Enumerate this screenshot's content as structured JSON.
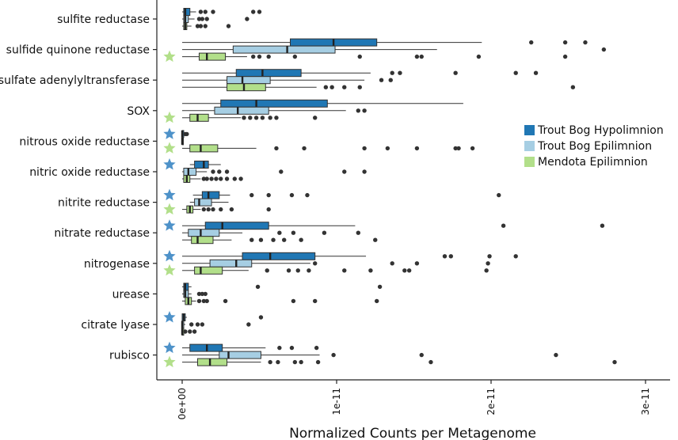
{
  "chart_data": {
    "type": "boxplot",
    "xlabel": "Normalized Counts per Metagenome",
    "ylabel": "",
    "title": "",
    "xlim": [
      -1.6e-12,
      3.1e-11
    ],
    "x_tick_values": [
      0,
      1e-11,
      2e-11,
      3e-11
    ],
    "x_tick_labels": [
      "0e+00",
      "1e-11",
      "2e-11",
      "3e-11"
    ],
    "grid": false,
    "legend_position": "right",
    "categories": [
      "sulfite reductase",
      "sulfide quinone reductase",
      "sulfate adenylyltransferase",
      "SOX",
      "nitrous oxide reductase",
      "nitric oxide reductase",
      "nitrite reductase",
      "nitrate reductase",
      "nitrogenase",
      "urease",
      "citrate lyase",
      "rubisco"
    ],
    "series": [
      {
        "name": "Trout Bog Hypolimnion",
        "color": "#2077b4",
        "boxes": [
          {
            "whisker_low": 0.0,
            "q1": 1e-13,
            "median": 2e-13,
            "q3": 5e-13,
            "whisker_high": 9e-13,
            "outliers": [
              1.2e-12,
              1.5e-12,
              2e-12,
              4.6e-12,
              5e-12
            ]
          },
          {
            "whisker_low": 0.0,
            "q1": 7e-12,
            "median": 9.8e-12,
            "q3": 1.26e-11,
            "whisker_high": 1.94e-11,
            "outliers": [
              2.26e-11,
              2.48e-11,
              2.61e-11
            ]
          },
          {
            "whisker_low": 0.0,
            "q1": 3.5e-12,
            "median": 5.2e-12,
            "q3": 7.7e-12,
            "whisker_high": 1.22e-11,
            "outliers": [
              1.36e-11,
              1.41e-11,
              1.77e-11,
              2.16e-11,
              2.29e-11
            ]
          },
          {
            "whisker_low": 0.0,
            "q1": 2.5e-12,
            "median": 4.8e-12,
            "q3": 9.4e-12,
            "whisker_high": 1.82e-11,
            "outliers": []
          },
          {
            "whisker_low": 0.0,
            "q1": 0.0,
            "median": 0.0,
            "q3": 1e-13,
            "whisker_high": 1e-13,
            "outliers": [
              2e-13,
              3e-13
            ]
          },
          {
            "whisker_low": 5e-13,
            "q1": 8e-13,
            "median": 1.4e-12,
            "q3": 1.7e-12,
            "whisker_high": 2.5e-12,
            "outliers": []
          },
          {
            "whisker_low": 7e-13,
            "q1": 1.3e-12,
            "median": 1.7e-12,
            "q3": 2.4e-12,
            "whisker_high": 3.1e-12,
            "outliers": [
              4.5e-12,
              5.6e-12,
              7.1e-12,
              8.1e-12,
              2.05e-11
            ]
          },
          {
            "whisker_low": 0.0,
            "q1": 1.5e-12,
            "median": 2.6e-12,
            "q3": 5.6e-12,
            "whisker_high": 1.12e-11,
            "outliers": [
              2.08e-11,
              2.72e-11
            ]
          },
          {
            "whisker_low": 0.0,
            "q1": 3.9e-12,
            "median": 5.7e-12,
            "q3": 8.6e-12,
            "whisker_high": 1.19e-11,
            "outliers": [
              1.7e-11,
              1.74e-11,
              1.99e-11,
              2.16e-11
            ]
          },
          {
            "whisker_low": 0.0,
            "q1": 1e-13,
            "median": 2e-13,
            "q3": 4e-13,
            "whisker_high": 6e-13,
            "outliers": [
              4.9e-12,
              1.28e-11
            ]
          },
          {
            "whisker_low": 0.0,
            "q1": 0.0,
            "median": 1e-13,
            "q3": 2e-13,
            "whisker_high": 3e-13,
            "outliers": [
              5.1e-12
            ]
          },
          {
            "whisker_low": 0.0,
            "q1": 5e-13,
            "median": 1.6e-12,
            "q3": 2.6e-12,
            "whisker_high": 5.4e-12,
            "outliers": [
              6.3e-12,
              7.1e-12,
              8.7e-12
            ]
          }
        ]
      },
      {
        "name": "Trout Bog Epilimnion",
        "color": "#a6cee3",
        "boxes": [
          {
            "whisker_low": 0.0,
            "q1": 1e-13,
            "median": 2e-13,
            "q3": 4e-13,
            "whisker_high": 8e-13,
            "outliers": [
              1.1e-12,
              1.3e-12,
              1.6e-12,
              4.2e-12
            ]
          },
          {
            "whisker_low": 0.0,
            "q1": 3.3e-12,
            "median": 6.8e-12,
            "q3": 9.9e-12,
            "whisker_high": 1.65e-11,
            "outliers": [
              2.73e-11
            ]
          },
          {
            "whisker_low": 0.0,
            "q1": 2.9e-12,
            "median": 3.9e-12,
            "q3": 5.7e-12,
            "whisker_high": 1.18e-11,
            "outliers": [
              1.29e-11,
              1.35e-11
            ]
          },
          {
            "whisker_low": 0.0,
            "q1": 2.1e-12,
            "median": 3.6e-12,
            "q3": 5.6e-12,
            "whisker_high": 1.06e-11,
            "outliers": [
              1.14e-11,
              1.18e-11
            ]
          },
          {
            "whisker_low": 0.0,
            "q1": 0.0,
            "median": 0.0,
            "q3": 0.0,
            "whisker_high": 0.0,
            "outliers": []
          },
          {
            "whisker_low": 0.0,
            "q1": 1e-13,
            "median": 4e-13,
            "q3": 9e-13,
            "whisker_high": 1.6e-12,
            "outliers": [
              2e-12,
              2.4e-12,
              2.9e-12,
              6.4e-12,
              1.05e-11,
              1.18e-11
            ]
          },
          {
            "whisker_low": 5e-13,
            "q1": 8e-13,
            "median": 1.1e-12,
            "q3": 1.9e-12,
            "whisker_high": 3e-12,
            "outliers": []
          },
          {
            "whisker_low": 0.0,
            "q1": 4e-13,
            "median": 1.2e-12,
            "q3": 2.4e-12,
            "whisker_high": 3.9e-12,
            "outliers": [
              6.3e-12,
              7.2e-12,
              9.2e-12,
              1.14e-11
            ]
          },
          {
            "whisker_low": 0.0,
            "q1": 1.8e-12,
            "median": 3.5e-12,
            "q3": 4.5e-12,
            "whisker_high": 8.3e-12,
            "outliers": [
              8.6e-12,
              1.36e-11,
              1.52e-11,
              1.98e-11
            ]
          },
          {
            "whisker_low": 0.0,
            "q1": 1e-13,
            "median": 2e-13,
            "q3": 4e-13,
            "whisker_high": 6e-13,
            "outliers": [
              1.1e-12,
              1.3e-12,
              1.5e-12
            ]
          },
          {
            "whisker_low": 0.0,
            "q1": 0.0,
            "median": 0.0,
            "q3": 1e-13,
            "whisker_high": 2e-13,
            "outliers": [
              6e-13,
              1e-12,
              1.3e-12,
              4.3e-12
            ]
          },
          {
            "whisker_low": 0.0,
            "q1": 2.4e-12,
            "median": 3e-12,
            "q3": 5.1e-12,
            "whisker_high": 8.9e-12,
            "outliers": [
              9.8e-12,
              1.55e-11,
              2.42e-11
            ]
          }
        ]
      },
      {
        "name": "Mendota Epilimnion",
        "color": "#b2df8a",
        "boxes": [
          {
            "whisker_low": 0.0,
            "q1": 1e-13,
            "median": 2e-13,
            "q3": 3e-13,
            "whisker_high": 6e-13,
            "outliers": [
              1e-12,
              1.2e-12,
              1.5e-12,
              3e-12
            ]
          },
          {
            "whisker_low": 0.0,
            "q1": 1.1e-12,
            "median": 1.6e-12,
            "q3": 2.8e-12,
            "whisker_high": 4.2e-12,
            "outliers": [
              4.6e-12,
              5e-12,
              5.6e-12,
              7.3e-12,
              1.15e-11,
              1.52e-11,
              1.55e-11,
              1.92e-11,
              2.48e-11
            ]
          },
          {
            "whisker_low": 0.0,
            "q1": 2.9e-12,
            "median": 4e-12,
            "q3": 5.4e-12,
            "whisker_high": 8.7e-12,
            "outliers": [
              9.3e-12,
              9.7e-12,
              1.05e-11,
              1.15e-11,
              2.53e-11
            ]
          },
          {
            "whisker_low": 0.0,
            "q1": 5e-13,
            "median": 1e-12,
            "q3": 1.7e-12,
            "whisker_high": 3.8e-12,
            "outliers": [
              4e-12,
              4.4e-12,
              4.8e-12,
              5.2e-12,
              5.7e-12,
              6.1e-12,
              8.6e-12
            ]
          },
          {
            "whisker_low": 0.0,
            "q1": 5e-13,
            "median": 1.2e-12,
            "q3": 2.3e-12,
            "whisker_high": 4.8e-12,
            "outliers": [
              6.1e-12,
              7.9e-12,
              1.18e-11,
              1.33e-11,
              1.52e-11,
              1.77e-11,
              1.79e-11,
              1.88e-11
            ]
          },
          {
            "whisker_low": 0.0,
            "q1": 1e-13,
            "median": 3e-13,
            "q3": 5e-13,
            "whisker_high": 1.2e-12,
            "outliers": [
              1.4e-12,
              1.6e-12,
              1.9e-12,
              2.2e-12,
              2.5e-12,
              2.9e-12,
              3.4e-12,
              3.8e-12
            ]
          },
          {
            "whisker_low": 0.0,
            "q1": 3e-13,
            "median": 5e-13,
            "q3": 7e-13,
            "whisker_high": 1.2e-12,
            "outliers": [
              1.4e-12,
              1.7e-12,
              2e-12,
              2.5e-12,
              3.2e-12,
              5.6e-12
            ]
          },
          {
            "whisker_low": 0.0,
            "q1": 6e-13,
            "median": 1e-12,
            "q3": 2e-12,
            "whisker_high": 3.2e-12,
            "outliers": [
              4.5e-12,
              5.1e-12,
              5.9e-12,
              6.6e-12,
              7.7e-12,
              1.25e-11
            ]
          },
          {
            "whisker_low": 0.0,
            "q1": 8e-13,
            "median": 1.2e-12,
            "q3": 2.6e-12,
            "whisker_high": 4.3e-12,
            "outliers": [
              5.5e-12,
              6.9e-12,
              7.5e-12,
              8.2e-12,
              1.05e-11,
              1.22e-11,
              1.44e-11,
              1.47e-11,
              1.97e-11
            ]
          },
          {
            "whisker_low": 0.0,
            "q1": 2e-13,
            "median": 4e-13,
            "q3": 6e-13,
            "whisker_high": 9e-13,
            "outliers": [
              1.1e-12,
              1.4e-12,
              1.6e-12,
              2.8e-12,
              7.2e-12,
              8.6e-12,
              1.26e-11
            ]
          },
          {
            "whisker_low": 0.0,
            "q1": 0.0,
            "median": 0.0,
            "q3": 1e-13,
            "whisker_high": 1e-13,
            "outliers": [
              2e-13,
              5e-13,
              8e-13
            ]
          },
          {
            "whisker_low": 0.0,
            "q1": 1e-12,
            "median": 1.8e-12,
            "q3": 2.9e-12,
            "whisker_high": 5.1e-12,
            "outliers": [
              5.7e-12,
              6.2e-12,
              7.3e-12,
              7.7e-12,
              8.8e-12,
              1.61e-11,
              2.8e-11
            ]
          }
        ]
      }
    ],
    "significance_stars": [
      {
        "category": "sulfide quinone reductase",
        "series": "Mendota Epilimnion",
        "color": "#b2df8a"
      },
      {
        "category": "SOX",
        "series": "Mendota Epilimnion",
        "color": "#b2df8a"
      },
      {
        "category": "nitrous oxide reductase",
        "series": "Trout Bog Hypolimnion",
        "color": "#4e92c9"
      },
      {
        "category": "nitrous oxide reductase",
        "series": "Mendota Epilimnion",
        "color": "#b2df8a"
      },
      {
        "category": "nitric oxide reductase",
        "series": "Trout Bog Hypolimnion",
        "color": "#4e92c9"
      },
      {
        "category": "nitrite reductase",
        "series": "Trout Bog Hypolimnion",
        "color": "#4e92c9"
      },
      {
        "category": "nitrite reductase",
        "series": "Mendota Epilimnion",
        "color": "#b2df8a"
      },
      {
        "category": "nitrate reductase",
        "series": "Trout Bog Hypolimnion",
        "color": "#4e92c9"
      },
      {
        "category": "nitrogenase",
        "series": "Trout Bog Hypolimnion",
        "color": "#4e92c9"
      },
      {
        "category": "nitrogenase",
        "series": "Mendota Epilimnion",
        "color": "#b2df8a"
      },
      {
        "category": "citrate lyase",
        "series": "Trout Bog Hypolimnion",
        "color": "#4e92c9"
      },
      {
        "category": "rubisco",
        "series": "Trout Bog Hypolimnion",
        "color": "#4e92c9"
      },
      {
        "category": "rubisco",
        "series": "Mendota Epilimnion",
        "color": "#b2df8a"
      }
    ],
    "outlier_color": "#333333",
    "box_edge_color": "#333333"
  }
}
